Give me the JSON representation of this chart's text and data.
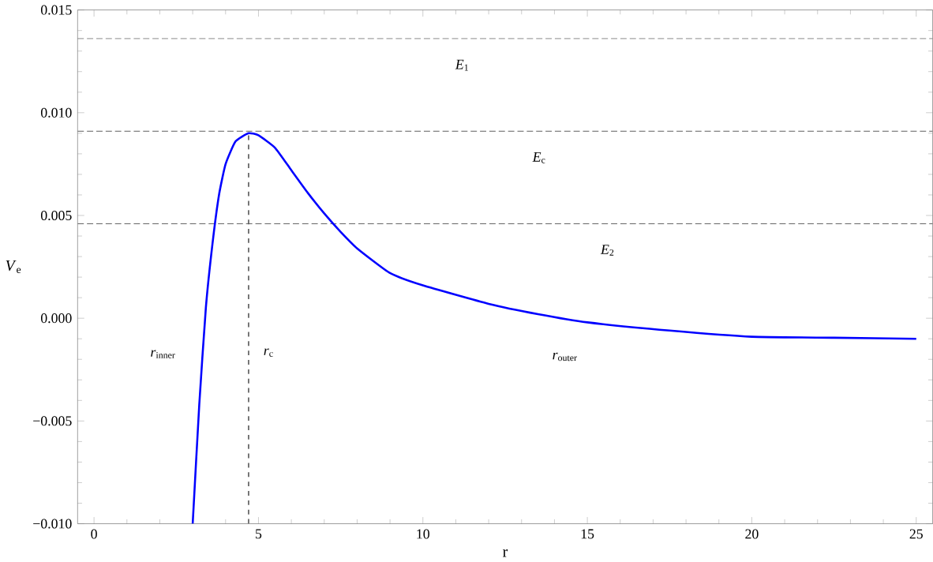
{
  "chart_data": {
    "type": "line",
    "xlabel": "r",
    "ylabel": "*V*$_{e}$",
    "xlim": [
      -0.5,
      25.5
    ],
    "ylim": [
      -0.01,
      0.015
    ],
    "xticks": [
      0,
      5,
      10,
      15,
      20,
      25
    ],
    "yticks": [
      {
        "value": -0.01,
        "label": "−0.010"
      },
      {
        "value": -0.005,
        "label": "−0.005"
      },
      {
        "value": 0,
        "label": "0.000"
      },
      {
        "value": 0.005,
        "label": "0.005"
      },
      {
        "value": 0.01,
        "label": "0.010"
      },
      {
        "value": 0.015,
        "label": "0.015"
      }
    ],
    "series": [
      {
        "color": "#0000ff",
        "x": [
          3.0,
          3.2,
          3.4,
          3.6,
          3.8,
          4.0,
          4.3,
          4.7,
          5.0,
          5.5,
          6.0,
          6.5,
          7.0,
          7.5,
          8.0,
          9.0,
          10.0,
          12.0,
          13.5,
          15.0,
          17.5,
          20.0,
          22.5,
          25.0
        ],
        "values": [
          -0.01,
          -0.0042,
          0.0005,
          0.0036,
          0.006,
          0.0075,
          0.0086,
          0.009,
          0.0089,
          0.0083,
          0.0072,
          0.0061,
          0.0051,
          0.0042,
          0.0034,
          0.0022,
          0.0016,
          0.0007,
          0.0002,
          -0.0002,
          -0.0006,
          -0.0009,
          -0.00095,
          -0.001
        ]
      }
    ],
    "ref_lines": [
      {
        "axis": "y",
        "value": 0.0136,
        "label": "*E*$_{1}$",
        "color": "#333333",
        "line_style": "dashed"
      },
      {
        "axis": "y",
        "value": 0.0091,
        "label": "*E*$_{c}$",
        "color": "#333333",
        "line_style": "dashed"
      },
      {
        "axis": "y",
        "value": 0.0046,
        "label": "*E*$_{2}$",
        "color": "#333333",
        "line_style": "dashed"
      },
      {
        "axis": "x",
        "value": 4.7,
        "label": "*r*$_{c}$",
        "color": "#555555",
        "line_style": "dashed"
      }
    ],
    "annotations": [
      "*r*$_{inner}$",
      "*r*$_{outer}$"
    ],
    "grid": false,
    "marker": "none",
    "line_style": "solid"
  }
}
